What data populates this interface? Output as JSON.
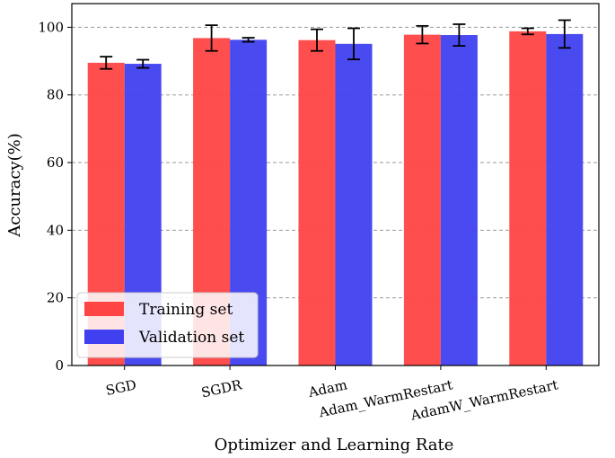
{
  "chart_data": {
    "type": "bar",
    "title": "",
    "xlabel": "Optimizer and Learning Rate",
    "ylabel": "Accuracy(%)",
    "ylim": [
      0,
      107
    ],
    "yticks": [
      0,
      20,
      40,
      60,
      80,
      100
    ],
    "grid": "y-dashed",
    "legend_position": "lower-left",
    "categories": [
      "SGD",
      "SGDR",
      "Adam",
      "Adam_WarmRestart",
      "AdamW_WarmRestart"
    ],
    "series": [
      {
        "name": "Training set",
        "color": "#ff4444",
        "values": [
          89.5,
          96.8,
          96.2,
          97.8,
          98.8
        ],
        "errors": [
          1.8,
          3.8,
          3.2,
          2.6,
          0.9
        ]
      },
      {
        "name": "Validation set",
        "color": "#4040f0",
        "values": [
          89.2,
          96.3,
          95.1,
          97.7,
          98.0
        ],
        "errors": [
          1.2,
          0.6,
          4.6,
          3.2,
          4.1
        ]
      }
    ]
  }
}
